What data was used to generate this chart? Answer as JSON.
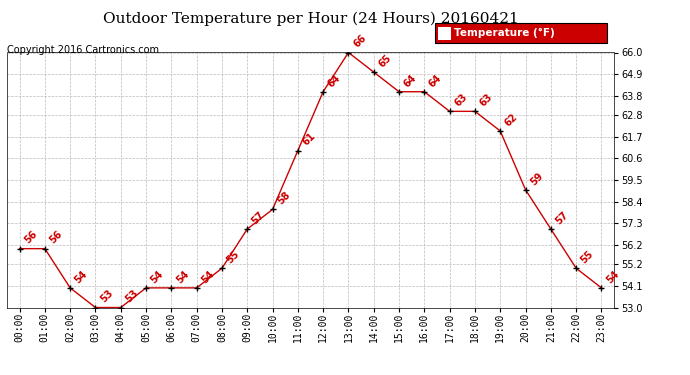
{
  "title": "Outdoor Temperature per Hour (24 Hours) 20160421",
  "copyright_text": "Copyright 2016 Cartronics.com",
  "legend_label": "Temperature (°F)",
  "hours": [
    "00:00",
    "01:00",
    "02:00",
    "03:00",
    "04:00",
    "05:00",
    "06:00",
    "07:00",
    "08:00",
    "09:00",
    "10:00",
    "11:00",
    "12:00",
    "13:00",
    "14:00",
    "15:00",
    "16:00",
    "17:00",
    "18:00",
    "19:00",
    "20:00",
    "21:00",
    "22:00",
    "23:00"
  ],
  "temps": [
    56,
    56,
    54,
    53,
    53,
    54,
    54,
    54,
    55,
    57,
    58,
    61,
    64,
    66,
    65,
    64,
    64,
    63,
    63,
    62,
    59,
    57,
    55,
    54
  ],
  "ylim": [
    53.0,
    66.0
  ],
  "yticks": [
    53.0,
    54.1,
    55.2,
    56.2,
    57.3,
    58.4,
    59.5,
    60.6,
    61.7,
    62.8,
    63.8,
    64.9,
    66.0
  ],
  "line_color": "#cc0000",
  "marker_color": "#000000",
  "label_color": "#cc0000",
  "bg_color": "#ffffff",
  "grid_color": "#bbbbbb",
  "title_fontsize": 11,
  "copyright_fontsize": 7,
  "tick_fontsize": 7,
  "label_fontsize": 7,
  "legend_bg": "#cc0000",
  "legend_text_color": "#ffffff"
}
